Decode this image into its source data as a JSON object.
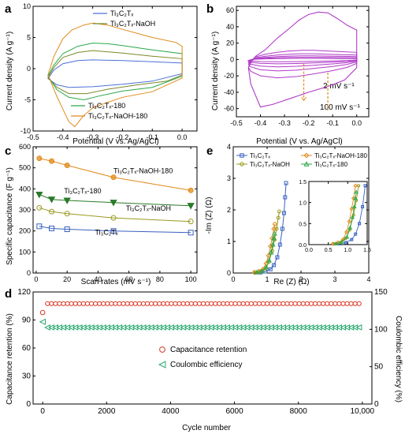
{
  "chart_data": [
    {
      "panel": "a",
      "type": "line",
      "xlabel": "Potential (V vs. Ag/AgCl)",
      "ylabel": "Current density (A g⁻¹)",
      "xlim": [
        -0.5,
        0.05
      ],
      "ylim": [
        -10,
        10
      ],
      "xticks": [
        "-0.5",
        "-0.4",
        "-0.3",
        "-0.2",
        "-0.1",
        "0.0"
      ],
      "yticks": [
        "-10",
        "-5",
        "0",
        "5",
        "10"
      ],
      "legend_top": [
        {
          "label": "Ti₃C₂Tₓ",
          "color": "#4c70d9"
        },
        {
          "label": "Ti₃C₂Tₓ-NaOH",
          "color": "#7a8a2a"
        }
      ],
      "legend_bottom": [
        {
          "label": "Ti₃C₂Tₓ-180",
          "color": "#2aa84a"
        },
        {
          "label": "Ti₃C₂Tₓ-NaOH-180",
          "color": "#e08a1a"
        }
      ],
      "series": [
        {
          "name": "Ti₃C₂Tₓ",
          "color": "#4c70d9",
          "upper": [
            [
              -0.45,
              -1.6
            ],
            [
              -0.43,
              -0.2
            ],
            [
              -0.4,
              0.8
            ],
            [
              -0.35,
              1.3
            ],
            [
              -0.3,
              1.4
            ],
            [
              -0.2,
              1.3
            ],
            [
              -0.1,
              1.1
            ],
            [
              0,
              0.9
            ]
          ],
          "lower": [
            [
              -0.45,
              -1.6
            ],
            [
              -0.42,
              -2.6
            ],
            [
              -0.38,
              -3.0
            ],
            [
              -0.3,
              -2.9
            ],
            [
              -0.2,
              -2.5
            ],
            [
              -0.1,
              -2.0
            ],
            [
              0,
              -0.8
            ]
          ]
        },
        {
          "name": "Ti₃C₂Tₓ-NaOH",
          "color": "#7a8a2a",
          "upper": [
            [
              -0.45,
              -1.4
            ],
            [
              -0.43,
              0.2
            ],
            [
              -0.4,
              1.8
            ],
            [
              -0.35,
              2.6
            ],
            [
              -0.3,
              2.9
            ],
            [
              -0.2,
              2.5
            ],
            [
              -0.1,
              2.0
            ],
            [
              0,
              1.6
            ]
          ],
          "lower": [
            [
              -0.45,
              -1.4
            ],
            [
              -0.42,
              -3.0
            ],
            [
              -0.38,
              -4.0
            ],
            [
              -0.32,
              -4.0
            ],
            [
              -0.25,
              -3.3
            ],
            [
              -0.15,
              -2.6
            ],
            [
              -0.05,
              -2.0
            ],
            [
              0,
              -1.0
            ]
          ]
        },
        {
          "name": "Ti₃C₂Tₓ-180",
          "color": "#2aa84a",
          "upper": [
            [
              -0.45,
              -1.2
            ],
            [
              -0.43,
              0.6
            ],
            [
              -0.4,
              2.4
            ],
            [
              -0.35,
              3.6
            ],
            [
              -0.3,
              4.1
            ],
            [
              -0.25,
              4.0
            ],
            [
              -0.2,
              3.7
            ],
            [
              -0.1,
              3.0
            ],
            [
              0,
              2.4
            ]
          ],
          "lower": [
            [
              -0.45,
              -1.2
            ],
            [
              -0.42,
              -3.4
            ],
            [
              -0.38,
              -4.6
            ],
            [
              -0.33,
              -5.0
            ],
            [
              -0.28,
              -4.4
            ],
            [
              -0.2,
              -3.6
            ],
            [
              -0.1,
              -3.0
            ],
            [
              0,
              -1.2
            ]
          ]
        },
        {
          "name": "Ti₃C₂Tₓ-NaOH-180",
          "color": "#e08a1a",
          "upper": [
            [
              -0.45,
              -1.0
            ],
            [
              -0.43,
              2.0
            ],
            [
              -0.4,
              4.8
            ],
            [
              -0.37,
              6.2
            ],
            [
              -0.33,
              7.0
            ],
            [
              -0.3,
              7.3
            ],
            [
              -0.25,
              7.0
            ],
            [
              -0.2,
              6.3
            ],
            [
              -0.1,
              5.0
            ],
            [
              -0.02,
              4.2
            ],
            [
              0,
              3.6
            ]
          ],
          "lower": [
            [
              -0.45,
              -1.0
            ],
            [
              -0.42,
              -4.5
            ],
            [
              -0.4,
              -6.5
            ],
            [
              -0.38,
              -8.5
            ],
            [
              -0.36,
              -9.3
            ],
            [
              -0.33,
              -7.5
            ],
            [
              -0.3,
              -6.3
            ],
            [
              -0.25,
              -5.4
            ],
            [
              -0.2,
              -4.6
            ],
            [
              -0.1,
              -3.7
            ],
            [
              0,
              -1.5
            ]
          ]
        }
      ]
    },
    {
      "panel": "b",
      "type": "line",
      "xlabel": "Potential (V vs. Ag/AgCl)",
      "ylabel": "Current density (A g⁻¹)",
      "xlim": [
        -0.5,
        0.05
      ],
      "ylim": [
        -70,
        65
      ],
      "xticks": [
        "-0.5",
        "-0.4",
        "-0.3",
        "-0.2",
        "-0.1",
        "0.0"
      ],
      "yticks": [
        "-60",
        "-40",
        "-20",
        "0",
        "20",
        "40",
        "60"
      ],
      "color": "#b03ac8",
      "annotations": [
        "2 mV s⁻¹",
        "100 mV s⁻¹"
      ],
      "scale_factors": [
        1.0,
        1.9,
        3.2,
        5.0,
        8.0
      ],
      "base_upper": [
        [
          -0.45,
          -1.2
        ],
        [
          -0.44,
          -0.2
        ],
        [
          -0.42,
          0.4
        ],
        [
          -0.38,
          0.8
        ],
        [
          -0.33,
          1.1
        ],
        [
          -0.28,
          1.3
        ],
        [
          -0.23,
          1.4
        ],
        [
          -0.18,
          1.4
        ],
        [
          -0.12,
          1.3
        ],
        [
          -0.06,
          1.2
        ],
        [
          0,
          1.1
        ]
      ],
      "base_lower": [
        [
          -0.45,
          -1.2
        ],
        [
          -0.44,
          -1.8
        ],
        [
          -0.4,
          -2.5
        ],
        [
          -0.33,
          -2.8
        ],
        [
          -0.25,
          -2.6
        ],
        [
          -0.18,
          -2.2
        ],
        [
          -0.1,
          -1.7
        ],
        [
          -0.04,
          -1.2
        ],
        [
          0,
          -0.6
        ]
      ],
      "big_upper": [
        [
          -0.45,
          -10
        ],
        [
          -0.44,
          -4
        ],
        [
          -0.42,
          4
        ],
        [
          -0.38,
          12
        ],
        [
          -0.33,
          26
        ],
        [
          -0.28,
          38
        ],
        [
          -0.24,
          48
        ],
        [
          -0.2,
          55
        ],
        [
          -0.16,
          58
        ],
        [
          -0.12,
          57
        ],
        [
          -0.08,
          50
        ],
        [
          -0.04,
          42
        ],
        [
          0,
          36
        ]
      ],
      "big_lower": [
        [
          -0.45,
          -10
        ],
        [
          -0.44,
          -30
        ],
        [
          -0.4,
          -58
        ],
        [
          -0.35,
          -55
        ],
        [
          -0.28,
          -48
        ],
        [
          -0.2,
          -40
        ],
        [
          -0.12,
          -33
        ],
        [
          -0.05,
          -25
        ],
        [
          0,
          -10
        ]
      ]
    },
    {
      "panel": "c",
      "type": "line",
      "xlabel": "Scan rates (mV s⁻¹)",
      "ylabel": "Specific capacitance (F g⁻¹)",
      "xlim": [
        -2,
        104
      ],
      "ylim": [
        0,
        600
      ],
      "xticks": [
        "0",
        "20",
        "40",
        "60",
        "80",
        "100"
      ],
      "yticks": [
        "0",
        "100",
        "200",
        "300",
        "400",
        "500",
        "600"
      ],
      "x": [
        2,
        10,
        20,
        50,
        100
      ],
      "series": [
        {
          "name": "Ti₃C₂Tₓ-NaOH-180",
          "color": "#e08a1a",
          "marker": "circle",
          "values": [
            545,
            532,
            512,
            455,
            393
          ],
          "label_pos": [
            50,
            475
          ]
        },
        {
          "name": "Ti₃C₂Tₓ-180",
          "color": "#2a7a2a",
          "marker": "tri-down",
          "values": [
            373,
            350,
            345,
            335,
            320
          ],
          "label_pos": [
            18,
            378
          ]
        },
        {
          "name": "Ti₃C₂Tₓ-NaOH",
          "color": "#9a9a20",
          "marker": "circle",
          "values": [
            310,
            292,
            282,
            262,
            245
          ],
          "label_pos": [
            58,
            296
          ]
        },
        {
          "name": "Ti₃C₂Tₓ",
          "color": "#3a60c0",
          "marker": "square",
          "values": [
            222,
            212,
            208,
            200,
            192
          ],
          "label_pos": [
            38,
            182
          ]
        }
      ]
    },
    {
      "panel": "e",
      "type": "line",
      "xlabel": "Re (Z) (Ω)",
      "ylabel": "-Im (Z) (Ω)",
      "xlim": [
        0,
        4
      ],
      "ylim": [
        0,
        4
      ],
      "xticks": [
        "0",
        "1",
        "2",
        "3",
        "4"
      ],
      "yticks": [
        "0",
        "1",
        "2",
        "3",
        "4"
      ],
      "legend": [
        {
          "label": "Ti₃C₂Tₓ",
          "color": "#3a60c0",
          "marker": "square"
        },
        {
          "label": "Ti₃C₂Tₓ-NaOH-180",
          "color": "#e08a1a",
          "marker": "diamond"
        },
        {
          "label": "Ti₃C₂Tₓ-NaOH",
          "color": "#9a9a20",
          "marker": "circle"
        },
        {
          "label": "Ti₃C₂Tₓ-180",
          "color": "#2aa84a",
          "marker": "triangle"
        }
      ],
      "series": [
        {
          "name": "Ti₃C₂Tₓ",
          "color": "#3a60c0",
          "x": [
            0.8,
            0.95,
            1.1,
            1.2,
            1.3,
            1.38,
            1.45,
            1.5,
            1.53,
            1.56
          ],
          "y": [
            0.02,
            0.05,
            0.12,
            0.25,
            0.5,
            0.9,
            1.4,
            1.9,
            2.4,
            2.85
          ]
        },
        {
          "name": "Ti₃C₂Tₓ-NaOH-180",
          "color": "#e08a1a",
          "x": [
            0.62,
            0.75,
            0.88,
            0.97,
            1.04,
            1.1,
            1.15,
            1.2,
            1.23
          ],
          "y": [
            0.02,
            0.05,
            0.12,
            0.3,
            0.55,
            0.85,
            1.1,
            1.4,
            1.55
          ]
        },
        {
          "name": "Ti₃C₂Tₓ-NaOH",
          "color": "#9a9a20",
          "x": [
            0.65,
            0.8,
            0.95,
            1.05,
            1.15,
            1.22,
            1.28,
            1.33,
            1.36
          ],
          "y": [
            0.02,
            0.05,
            0.15,
            0.35,
            0.7,
            1.05,
            1.4,
            1.75,
            1.95
          ]
        },
        {
          "name": "Ti₃C₂Tₓ-180",
          "color": "#2aa84a",
          "x": [
            0.7,
            0.85,
            0.98,
            1.06,
            1.12,
            1.17,
            1.2,
            1.22
          ],
          "y": [
            0.02,
            0.06,
            0.18,
            0.4,
            0.65,
            0.9,
            1.1,
            1.25
          ]
        }
      ],
      "inset": {
        "xlim": [
          0,
          1.5
        ],
        "ylim": [
          0,
          1.5
        ],
        "xticks": [
          "0.0",
          "0.5",
          "1.0",
          "1.5"
        ],
        "yticks": [
          "0.0",
          "0.5",
          "1.0",
          "1.5"
        ]
      }
    },
    {
      "panel": "d",
      "type": "scatter",
      "xlabel": "Cycle number",
      "ylabel_left": "Capacitance retention (%)",
      "ylabel_right": "Coulombic efficiency (%)",
      "xlim": [
        -300,
        10300
      ],
      "ylim_left": [
        0,
        120
      ],
      "ylim_right": [
        0,
        150
      ],
      "xticks": [
        "0",
        "2000",
        "4000",
        "6000",
        "8000",
        "10,000"
      ],
      "yticks_left": [
        "0",
        "30",
        "60",
        "90",
        "120"
      ],
      "yticks_right": [
        "0",
        "50",
        "100",
        "150"
      ],
      "series": [
        {
          "name": "Capacitance retention",
          "color": "#d83a2a",
          "marker": "circle",
          "axis": "left",
          "first": [
            0,
            98
          ],
          "level": 108
        },
        {
          "name": "Coulombic efficiency",
          "color": "#2aa870",
          "marker": "tri-left",
          "axis": "right",
          "first": [
            0,
            110
          ],
          "level": 103
        }
      ],
      "point_spacing": 125
    }
  ],
  "panel_labels": [
    "a",
    "b",
    "c",
    "d",
    "e"
  ]
}
